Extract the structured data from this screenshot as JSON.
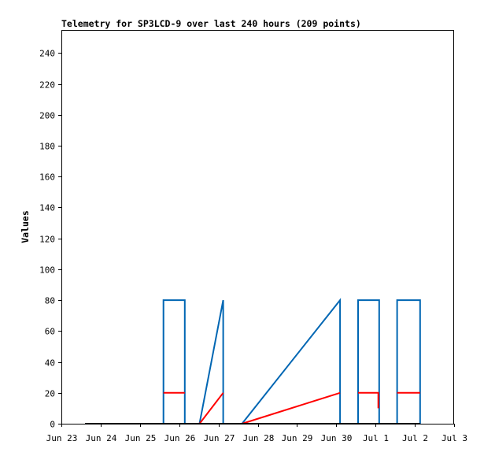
{
  "chart_data": {
    "type": "line",
    "title": "Telemetry for SP3LCD-9 over last 240 hours (209 points)",
    "xlabel": "",
    "ylabel": "Values",
    "x_range": [
      0,
      240
    ],
    "x_unit": "hours",
    "ylim": [
      0,
      255
    ],
    "y_ticks": [
      0,
      20,
      40,
      60,
      80,
      100,
      120,
      140,
      160,
      180,
      200,
      220,
      240
    ],
    "x_ticks": [
      {
        "label": "Jun 23",
        "hour": 0
      },
      {
        "label": "Jun 24",
        "hour": 24
      },
      {
        "label": "Jun 25",
        "hour": 48
      },
      {
        "label": "Jun 26",
        "hour": 72
      },
      {
        "label": "Jun 27",
        "hour": 96
      },
      {
        "label": "Jun 28",
        "hour": 120
      },
      {
        "label": "Jun 29",
        "hour": 144
      },
      {
        "label": "Jun 30",
        "hour": 168
      },
      {
        "label": "Jul 1",
        "hour": 192
      },
      {
        "label": "Jul 2",
        "hour": 216
      },
      {
        "label": "Jul 3",
        "hour": 240
      }
    ],
    "grid": false,
    "legend": "none",
    "series": [
      {
        "color": "#0066b3",
        "points": [
          [
            14.5,
            0
          ],
          [
            62.4,
            0
          ],
          [
            62.4,
            80
          ],
          [
            75.4,
            80
          ],
          [
            75.4,
            0
          ],
          [
            84.4,
            0
          ],
          [
            98.9,
            80
          ],
          [
            98.9,
            0
          ],
          [
            110.4,
            0
          ],
          [
            170.3,
            80
          ],
          [
            170.3,
            0
          ],
          [
            181.3,
            0
          ],
          [
            181.3,
            80
          ],
          [
            194.2,
            80
          ],
          [
            194.2,
            40
          ],
          [
            194.2,
            0
          ],
          [
            205.2,
            0
          ],
          [
            205.2,
            80
          ],
          [
            219.2,
            80
          ],
          [
            219.2,
            0
          ]
        ]
      },
      {
        "color": "#ff0000",
        "points": [
          [
            62.4,
            20
          ],
          [
            75.4,
            20
          ]
        ]
      },
      {
        "color": "#ff0000",
        "points": [
          [
            84.4,
            0
          ],
          [
            98.9,
            20
          ]
        ]
      },
      {
        "color": "#ff0000",
        "points": [
          [
            110.4,
            0
          ],
          [
            170.3,
            20
          ]
        ]
      },
      {
        "color": "#ff0000",
        "points": [
          [
            181.3,
            20
          ],
          [
            193.7,
            20
          ],
          [
            193.7,
            10
          ]
        ]
      },
      {
        "color": "#ff0000",
        "points": [
          [
            205.2,
            20
          ],
          [
            219.2,
            20
          ]
        ]
      },
      {
        "color": "#000000",
        "points": [
          [
            14.5,
            0
          ],
          [
            219.2,
            0
          ]
        ]
      }
    ]
  }
}
